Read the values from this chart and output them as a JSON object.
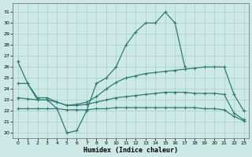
{
  "xlabel": "Humidex (Indice chaleur)",
  "x": [
    0,
    1,
    2,
    3,
    4,
    5,
    6,
    7,
    8,
    9,
    10,
    11,
    12,
    13,
    14,
    15,
    16,
    17,
    18,
    19,
    20,
    21,
    22,
    23
  ],
  "line_main": [
    26.5,
    24.5,
    23.0,
    23.0,
    22.2,
    20.0,
    20.2,
    22.0,
    24.5,
    25.0,
    26.0,
    28.0,
    29.2,
    30.0,
    30.0,
    31.0,
    30.0,
    26.0,
    null,
    null,
    null,
    null,
    null,
    null
  ],
  "line_rise": [
    24.5,
    24.5,
    23.2,
    23.2,
    22.8,
    22.5,
    22.6,
    22.8,
    23.3,
    24.0,
    24.6,
    25.0,
    25.2,
    25.4,
    25.5,
    25.6,
    25.7,
    25.8,
    25.9,
    26.0,
    26.0,
    26.0,
    23.5,
    22.0
  ],
  "line_mid": [
    23.2,
    23.1,
    23.0,
    23.0,
    22.8,
    22.5,
    22.5,
    22.6,
    22.8,
    23.0,
    23.2,
    23.3,
    23.4,
    23.5,
    23.6,
    23.7,
    23.7,
    23.7,
    23.6,
    23.6,
    23.6,
    23.5,
    21.8,
    21.2
  ],
  "line_low": [
    22.2,
    22.2,
    22.2,
    22.2,
    22.2,
    22.1,
    22.1,
    22.1,
    22.2,
    22.2,
    22.3,
    22.3,
    22.3,
    22.3,
    22.3,
    22.3,
    22.3,
    22.3,
    22.3,
    22.2,
    22.2,
    22.1,
    21.5,
    21.1
  ],
  "ylim": [
    19.5,
    31.8
  ],
  "yticks": [
    20,
    21,
    22,
    23,
    24,
    25,
    26,
    27,
    28,
    29,
    30,
    31
  ],
  "xticks": [
    0,
    1,
    2,
    3,
    4,
    5,
    6,
    7,
    8,
    9,
    10,
    11,
    12,
    13,
    14,
    15,
    16,
    17,
    18,
    19,
    20,
    21,
    22,
    23
  ],
  "line_color": "#2e7d72",
  "bg_color": "#cce9e6",
  "grid_color": "#aacfcc",
  "marker": "+"
}
